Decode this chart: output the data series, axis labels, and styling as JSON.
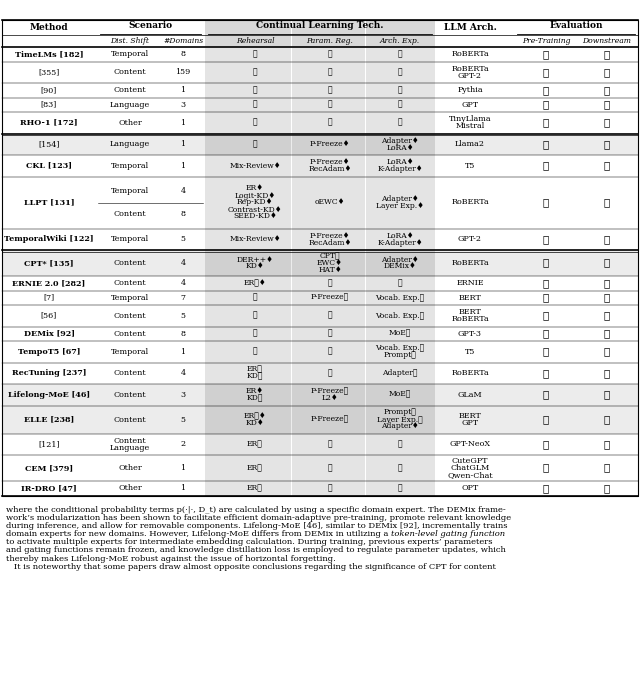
{
  "rows": [
    {
      "method": "TimeLMs [182]",
      "method_bold": true,
      "dist_shift": "Temporal",
      "num_domains": "8",
      "rehearsal": "✗",
      "param_reg": "✗",
      "arch_exp": "✗",
      "llm_arch": "RoBERTa",
      "pre_training": "✓",
      "downstream": "✓",
      "bg": "white",
      "double_line_below": false,
      "llpt_split": false
    },
    {
      "method": "[355]",
      "method_bold": false,
      "dist_shift": "Content",
      "num_domains": "159",
      "rehearsal": "✗",
      "param_reg": "✗",
      "arch_exp": "✗",
      "llm_arch": "RoBERTa\nGPT-2",
      "pre_training": "✓",
      "downstream": "✗",
      "bg": "white",
      "double_line_below": false,
      "llpt_split": false
    },
    {
      "method": "[90]",
      "method_bold": false,
      "dist_shift": "Content",
      "num_domains": "1",
      "rehearsal": "✗",
      "param_reg": "✗",
      "arch_exp": "✗",
      "llm_arch": "Pythia",
      "pre_training": "✓",
      "downstream": "✗",
      "bg": "white",
      "double_line_below": false,
      "llpt_split": false
    },
    {
      "method": "[83]",
      "method_bold": false,
      "dist_shift": "Language",
      "num_domains": "3",
      "rehearsal": "✗",
      "param_reg": "✗",
      "arch_exp": "✗",
      "llm_arch": "GPT",
      "pre_training": "✓",
      "downstream": "✗",
      "bg": "white",
      "double_line_below": false,
      "llpt_split": false
    },
    {
      "method": "RHO-1 [172]",
      "method_bold": true,
      "dist_shift": "Other",
      "num_domains": "1",
      "rehearsal": "✗",
      "param_reg": "✗",
      "arch_exp": "✗",
      "llm_arch": "TinyLlama\nMistral",
      "pre_training": "✓",
      "downstream": "✓",
      "bg": "white",
      "double_line_below": true,
      "llpt_split": false
    },
    {
      "method": "[154]",
      "method_bold": false,
      "dist_shift": "Language",
      "num_domains": "1",
      "rehearsal": "✗",
      "param_reg": "P-Freeze♦",
      "arch_exp": "Adapter♦\nLoRA♦",
      "llm_arch": "Llama2",
      "pre_training": "✓",
      "downstream": "✓",
      "bg": "gray",
      "double_line_below": false,
      "llpt_split": false
    },
    {
      "method": "CKL [123]",
      "method_bold": true,
      "dist_shift": "Temporal",
      "num_domains": "1",
      "rehearsal": "Mix-Review♦",
      "param_reg": "P-Freeze♦\nRecAdam♦",
      "arch_exp": "LoRA♦\nK-Adapter♦",
      "llm_arch": "T5",
      "pre_training": "✗",
      "downstream": "✓",
      "bg": "white",
      "double_line_below": false,
      "llpt_split": false
    },
    {
      "method": "LLPT [131]",
      "method_bold": true,
      "dist_shift": "Temporal\nContent",
      "num_domains": "4\n8",
      "rehearsal": "ER♦\nLogit-KD♦\nRep-KD♦\nContrast-KD♦\nSEED-KD♦",
      "param_reg": "oEWC♦",
      "arch_exp": "Adapter♦\nLayer Exp.♦",
      "llm_arch": "RoBERTa",
      "pre_training": "✓",
      "downstream": "✓",
      "bg": "white",
      "double_line_below": false,
      "llpt_split": true
    },
    {
      "method": "TemporalWiki [122]",
      "method_bold": true,
      "dist_shift": "Temporal",
      "num_domains": "5",
      "rehearsal": "Mix-Review♦",
      "param_reg": "P-Freeze♦\nRecAdam♦",
      "arch_exp": "LoRA♦\nK-Adapter♦",
      "llm_arch": "GPT-2",
      "pre_training": "✓",
      "downstream": "✓",
      "bg": "white",
      "double_line_below": true,
      "llpt_split": false
    },
    {
      "method": "CPT* [135]",
      "method_bold": true,
      "dist_shift": "Content",
      "num_domains": "4",
      "rehearsal": "DER++♦\nKD♦",
      "param_reg": "CPT✓\nEWC♦\nHAT♦",
      "arch_exp": "Adapter♦\nDEMix♦",
      "llm_arch": "RoBERTa",
      "pre_training": "✓",
      "downstream": "✗",
      "bg": "gray",
      "double_line_below": false,
      "llpt_split": false
    },
    {
      "method": "ERNIE 2.0 [282]",
      "method_bold": true,
      "dist_shift": "Content",
      "num_domains": "4",
      "rehearsal": "ER✓♦",
      "param_reg": "✗",
      "arch_exp": "✗",
      "llm_arch": "ERNIE",
      "pre_training": "✗",
      "downstream": "✓",
      "bg": "white",
      "double_line_below": false,
      "llpt_split": false
    },
    {
      "method": "[7]",
      "method_bold": false,
      "dist_shift": "Temporal",
      "num_domains": "7",
      "rehearsal": "✗",
      "param_reg": "P-Freeze✓",
      "arch_exp": "Vocab. Exp.✓",
      "llm_arch": "BERT",
      "pre_training": "✗",
      "downstream": "✓",
      "bg": "white",
      "double_line_below": false,
      "llpt_split": false
    },
    {
      "method": "[56]",
      "method_bold": false,
      "dist_shift": "Content",
      "num_domains": "5",
      "rehearsal": "✗",
      "param_reg": "✗",
      "arch_exp": "Vocab. Exp.✓",
      "llm_arch": "BERT\nRoBERTa",
      "pre_training": "✗",
      "downstream": "✓",
      "bg": "white",
      "double_line_below": false,
      "llpt_split": false
    },
    {
      "method": "DEMix [92]",
      "method_bold": true,
      "dist_shift": "Content",
      "num_domains": "8",
      "rehearsal": "✗",
      "param_reg": "✗",
      "arch_exp": "MoE✓",
      "llm_arch": "GPT-3",
      "pre_training": "✓",
      "downstream": "✓",
      "bg": "white",
      "double_line_below": false,
      "llpt_split": false
    },
    {
      "method": "TempoT5 [67]",
      "method_bold": true,
      "dist_shift": "Temporal",
      "num_domains": "1",
      "rehearsal": "✗",
      "param_reg": "✗",
      "arch_exp": "Vocab. Exp.✓\nPrompt✓",
      "llm_arch": "T5",
      "pre_training": "✗",
      "downstream": "✓",
      "bg": "white",
      "double_line_below": false,
      "llpt_split": false
    },
    {
      "method": "RecTuning [237]",
      "method_bold": true,
      "dist_shift": "Content",
      "num_domains": "4",
      "rehearsal": "ER✓\nKD✓",
      "param_reg": "✗",
      "arch_exp": "Adapter✓",
      "llm_arch": "RoBERTa",
      "pre_training": "✗",
      "downstream": "✓",
      "bg": "white",
      "double_line_below": false,
      "llpt_split": false
    },
    {
      "method": "Lifelong-MoE [46]",
      "method_bold": true,
      "dist_shift": "Content",
      "num_domains": "3",
      "rehearsal": "ER♦\nKD✓",
      "param_reg": "P-Freeze✓\nL2♦",
      "arch_exp": "MoE✓",
      "llm_arch": "GLaM",
      "pre_training": "✓",
      "downstream": "✓",
      "bg": "gray",
      "double_line_below": false,
      "llpt_split": false
    },
    {
      "method": "ELLE [238]",
      "method_bold": true,
      "dist_shift": "Content",
      "num_domains": "5",
      "rehearsal": "ER✓♦\nKD♦",
      "param_reg": "P-Freeze✓",
      "arch_exp": "Prompt✓\nLayer Exp.✓\nAdapter♦",
      "llm_arch": "BERT\nGPT",
      "pre_training": "✓",
      "downstream": "✓",
      "bg": "gray",
      "double_line_below": false,
      "llpt_split": false
    },
    {
      "method": "[121]",
      "method_bold": false,
      "dist_shift": "Content\nLanguage",
      "num_domains": "2",
      "rehearsal": "ER✓",
      "param_reg": "✗",
      "arch_exp": "✗",
      "llm_arch": "GPT-NeoX",
      "pre_training": "✓",
      "downstream": "✓",
      "bg": "white",
      "double_line_below": false,
      "llpt_split": false
    },
    {
      "method": "CEM [379]",
      "method_bold": true,
      "dist_shift": "Other",
      "num_domains": "1",
      "rehearsal": "ER✓",
      "param_reg": "✗",
      "arch_exp": "✗",
      "llm_arch": "CuteGPT\nChatGLM\nQwen-Chat",
      "pre_training": "✗",
      "downstream": "✓",
      "bg": "white",
      "double_line_below": false,
      "llpt_split": false
    },
    {
      "method": "IR-DRO [47]",
      "method_bold": true,
      "dist_shift": "Other",
      "num_domains": "1",
      "rehearsal": "ER✓",
      "param_reg": "✗",
      "arch_exp": "✗",
      "llm_arch": "OPT",
      "pre_training": "✗",
      "downstream": "✓",
      "bg": "white",
      "double_line_below": false,
      "llpt_split": false
    }
  ],
  "bottom_text_parts": [
    {
      "text": "where the conditional probability terms ",
      "italic": false
    },
    {
      "text": "p",
      "italic": true
    },
    {
      "text": "(·|·, ",
      "italic": false
    },
    {
      "text": "D",
      "italic": true
    },
    {
      "text": "_t) are calculated by using a specific domain expert. The DEMix frame-",
      "italic": false
    }
  ],
  "bottom_lines": [
    "where the conditional probability terms p(·|·, D_t) are calculated by using a specific domain expert. The DEMix frame-",
    "work’s modularization has been shown to facilitate efficient domain-adaptive pre-training, promote relevant knowledge",
    "during inference, and allow for removable components. Lifelong-MoE [46], similar to DEMix [92], incrementally trains",
    "domain experts for new domains. However, Lifelong-MoE differs from DEMix in utilizing a token-level gating function",
    "to activate multiple experts for intermediate embedding calculation. During training, previous experts’ parameters",
    "and gating functions remain frozen, and knowledge distillation loss is employed to regulate parameter updates, which",
    "thereby makes Lifelong-MoE robust against the issue of horizontal forgetting.",
    "   It is noteworthy that some papers draw almost opposite conclusions regarding the significance of CPT for content"
  ],
  "italic_line_idx": 3,
  "italic_phrase": "token-level gating function"
}
